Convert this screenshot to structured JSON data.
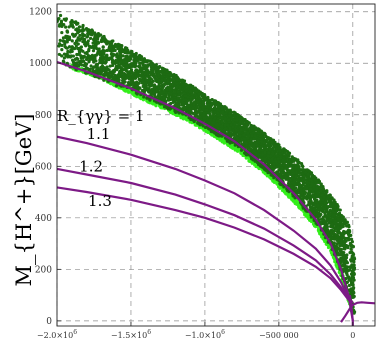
{
  "chart_data": {
    "type": "scatter",
    "title": "",
    "xlabel": "",
    "ylabel": "M_{H^+}[GeV]",
    "xlim": [
      -2000000,
      150000
    ],
    "ylim": [
      -20,
      1230
    ],
    "grid": true,
    "x_ticks": [
      {
        "value": -2000000,
        "mantissa": "−2.0×10",
        "exp": "6"
      },
      {
        "value": -1500000,
        "mantissa": "−1.5×10",
        "exp": "6"
      },
      {
        "value": -1000000,
        "mantissa": "−1.0×10",
        "exp": "6"
      },
      {
        "value": -500000,
        "label": "−500 000"
      },
      {
        "value": 0,
        "label": "0"
      }
    ],
    "y_ticks": [
      0,
      200,
      400,
      600,
      800,
      1000,
      1200
    ],
    "colors": {
      "dark_points": "#1d6b12",
      "light_points": "#33ee1a",
      "curves": "#7d1a86"
    },
    "scatter_region": {
      "upper_edge": [
        [
          -2000000,
          1200
        ],
        [
          -1800000,
          1140
        ],
        [
          -1500000,
          1050
        ],
        [
          -1200000,
          955
        ],
        [
          -1000000,
          880
        ],
        [
          -800000,
          810
        ],
        [
          -600000,
          730
        ],
        [
          -400000,
          640
        ],
        [
          -250000,
          560
        ],
        [
          -100000,
          450
        ],
        [
          -20000,
          370
        ],
        [
          0,
          300
        ]
      ],
      "lower_edge": [
        [
          -2000000,
          1000
        ],
        [
          -1800000,
          960
        ],
        [
          -1500000,
          890
        ],
        [
          -1200000,
          810
        ],
        [
          -1000000,
          750
        ],
        [
          -800000,
          680
        ],
        [
          -600000,
          590
        ],
        [
          -400000,
          480
        ],
        [
          -250000,
          380
        ],
        [
          -150000,
          290
        ],
        [
          -80000,
          190
        ],
        [
          -30000,
          90
        ],
        [
          0,
          30
        ],
        [
          10000,
          10
        ]
      ],
      "light_edge": [
        [
          -1900000,
          978
        ],
        [
          -1700000,
          940
        ],
        [
          -1500000,
          880
        ],
        [
          -1200000,
          800
        ],
        [
          -1000000,
          738
        ],
        [
          -800000,
          665
        ],
        [
          -600000,
          575
        ],
        [
          -400000,
          462
        ],
        [
          -250000,
          362
        ],
        [
          -150000,
          270
        ],
        [
          -80000,
          170
        ],
        [
          -30000,
          75
        ],
        [
          0,
          25
        ]
      ]
    },
    "series": [
      {
        "name": "R_{γγ} = 1",
        "points": [
          [
            -2000000,
            1005
          ],
          [
            -1800000,
            968
          ],
          [
            -1500000,
            902
          ],
          [
            -1200000,
            825
          ],
          [
            -1000000,
            765
          ],
          [
            -800000,
            697
          ],
          [
            -600000,
            607
          ],
          [
            -400000,
            495
          ],
          [
            -250000,
            393
          ],
          [
            -150000,
            300
          ],
          [
            -80000,
            200
          ],
          [
            -30000,
            100
          ],
          [
            0,
            0
          ]
        ]
      },
      {
        "name": "1.1",
        "points": [
          [
            -2000000,
            715
          ],
          [
            -1800000,
            690
          ],
          [
            -1500000,
            645
          ],
          [
            -1200000,
            590
          ],
          [
            -1000000,
            545
          ],
          [
            -800000,
            495
          ],
          [
            -600000,
            430
          ],
          [
            -400000,
            350
          ],
          [
            -250000,
            280
          ],
          [
            -150000,
            215
          ],
          [
            -80000,
            150
          ],
          [
            -30000,
            90
          ],
          [
            0,
            70
          ]
        ]
      },
      {
        "name": "1.2",
        "points": [
          [
            -2000000,
            590
          ],
          [
            -1800000,
            568
          ],
          [
            -1500000,
            535
          ],
          [
            -1200000,
            490
          ],
          [
            -1000000,
            452
          ],
          [
            -800000,
            410
          ],
          [
            -600000,
            358
          ],
          [
            -400000,
            292
          ],
          [
            -250000,
            235
          ],
          [
            -150000,
            180
          ],
          [
            -80000,
            130
          ],
          [
            -30000,
            85
          ],
          [
            0,
            70
          ]
        ]
      },
      {
        "name": "1.3",
        "points": [
          [
            -2000000,
            518
          ],
          [
            -1800000,
            500
          ],
          [
            -1500000,
            470
          ],
          [
            -1200000,
            430
          ],
          [
            -1000000,
            400
          ],
          [
            -800000,
            362
          ],
          [
            -600000,
            316
          ],
          [
            -400000,
            260
          ],
          [
            -250000,
            210
          ],
          [
            -150000,
            165
          ],
          [
            -80000,
            120
          ],
          [
            -30000,
            82
          ],
          [
            0,
            70
          ]
        ]
      },
      {
        "name": "",
        "points": [
          [
            -80000,
            -5
          ],
          [
            -50000,
            20
          ],
          [
            -20000,
            48
          ],
          [
            0,
            62
          ],
          [
            30000,
            70
          ],
          [
            60000,
            72
          ],
          [
            100000,
            70
          ],
          [
            150000,
            68
          ]
        ]
      },
      {
        "name": "",
        "points": [
          [
            -20000,
            100
          ],
          [
            -10000,
            60
          ],
          [
            0,
            0
          ],
          [
            0,
            -20
          ]
        ]
      }
    ],
    "annotations": [
      {
        "series": 0,
        "at": [
          -2000000,
          775
        ]
      },
      {
        "series": 1,
        "at": [
          -1800000,
          705
        ]
      },
      {
        "series": 2,
        "at": [
          -1850000,
          580
        ]
      },
      {
        "series": 3,
        "at": [
          -1790000,
          445
        ]
      }
    ]
  }
}
